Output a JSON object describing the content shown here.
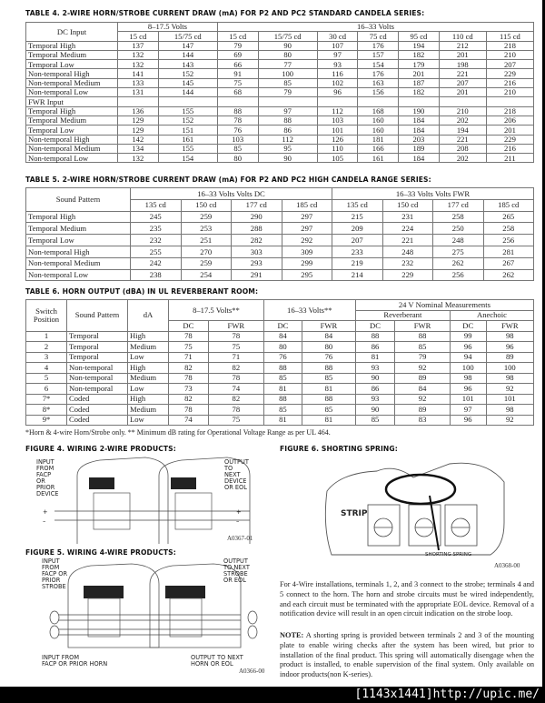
{
  "table4": {
    "title": "TABLE 4. 2-WIRE HORN/STROBE CURRENT DRAW (mA) FOR P2 AND PC2 STANDARD CANDELA SERIES:",
    "corner": "DC Input",
    "groups": [
      "8–17.5 Volts",
      "16–33 Volts"
    ],
    "columns": [
      "15 cd",
      "15/75 cd",
      "15 cd",
      "15/75 cd",
      "30 cd",
      "75 cd",
      "95 cd",
      "110 cd",
      "115 cd"
    ],
    "rows": [
      [
        "Temporal High",
        "137",
        "147",
        "79",
        "90",
        "107",
        "176",
        "194",
        "212",
        "218"
      ],
      [
        "Temporal Medium",
        "132",
        "144",
        "69",
        "80",
        "97",
        "157",
        "182",
        "201",
        "210"
      ],
      [
        "Temporal Low",
        "132",
        "143",
        "66",
        "77",
        "93",
        "154",
        "179",
        "198",
        "207"
      ],
      [
        "Non-temporal High",
        "141",
        "152",
        "91",
        "100",
        "116",
        "176",
        "201",
        "221",
        "229"
      ],
      [
        "Non-temporal Medium",
        "133",
        "145",
        "75",
        "85",
        "102",
        "163",
        "187",
        "207",
        "216"
      ],
      [
        "Non-temporal Low",
        "131",
        "144",
        "68",
        "79",
        "96",
        "156",
        "182",
        "201",
        "210"
      ],
      [
        "FWR Input",
        "",
        "",
        "",
        "",
        "",
        "",
        "",
        "",
        ""
      ],
      [
        "Temporal High",
        "136",
        "155",
        "88",
        "97",
        "112",
        "168",
        "190",
        "210",
        "218"
      ],
      [
        "Temporal Medium",
        "129",
        "152",
        "78",
        "88",
        "103",
        "160",
        "184",
        "202",
        "206"
      ],
      [
        "Temporal Low",
        "129",
        "151",
        "76",
        "86",
        "101",
        "160",
        "184",
        "194",
        "201"
      ],
      [
        "Non-temporal High",
        "142",
        "161",
        "103",
        "112",
        "126",
        "181",
        "203",
        "221",
        "229"
      ],
      [
        "Non-temporal Medium",
        "134",
        "155",
        "85",
        "95",
        "110",
        "166",
        "189",
        "208",
        "216"
      ],
      [
        "Non-temporal Low",
        "132",
        "154",
        "80",
        "90",
        "105",
        "161",
        "184",
        "202",
        "211"
      ]
    ]
  },
  "table5": {
    "title": "TABLE 5. 2-WIRE HORN/STROBE CURRENT DRAW (mA) FOR P2 AND PC2 HIGH CANDELA RANGE SERIES:",
    "corner": "Sound Pattern",
    "groups": [
      "16–33 Volts Volts DC",
      "16–33 Volts Volts FWR"
    ],
    "columns": [
      "135 cd",
      "150 cd",
      "177 cd",
      "185 cd",
      "135 cd",
      "150 cd",
      "177 cd",
      "185 cd"
    ],
    "rows": [
      [
        "Temporal High",
        "245",
        "259",
        "290",
        "297",
        "215",
        "231",
        "258",
        "265"
      ],
      [
        "Temporal Medium",
        "235",
        "253",
        "288",
        "297",
        "209",
        "224",
        "250",
        "258"
      ],
      [
        "Temporal Low",
        "232",
        "251",
        "282",
        "292",
        "207",
        "221",
        "248",
        "256"
      ],
      [
        "Non-temporal High",
        "255",
        "270",
        "303",
        "309",
        "233",
        "248",
        "275",
        "281"
      ],
      [
        "Non-temporal Medium",
        "242",
        "259",
        "293",
        "299",
        "219",
        "232",
        "262",
        "267"
      ],
      [
        "Non-temporal Low",
        "238",
        "254",
        "291",
        "295",
        "214",
        "229",
        "256",
        "262"
      ]
    ]
  },
  "table6": {
    "title": "TABLE 6. HORN OUTPUT (dBA) IN UL REVERBERANT ROOM:",
    "h_switch": "Switch Position",
    "h_pattern": "Sound Pattern",
    "h_da": "dA",
    "h_v1": "8–17.5 Volts**",
    "h_v2": "16–33 Volts**",
    "h_nominal": "24 V Nominal Measurements",
    "h_reverb": "Reverberant",
    "h_anech": "Anechoic",
    "h_dc": "DC",
    "h_fwr": "FWR",
    "rows": [
      [
        "1",
        "Temporal",
        "High",
        "78",
        "78",
        "84",
        "84",
        "88",
        "88",
        "99",
        "98"
      ],
      [
        "2",
        "Temporal",
        "Medium",
        "75",
        "75",
        "80",
        "80",
        "86",
        "85",
        "96",
        "96"
      ],
      [
        "3",
        "Temporal",
        "Low",
        "71",
        "71",
        "76",
        "76",
        "81",
        "79",
        "94",
        "89"
      ],
      [
        "4",
        "Non-temporal",
        "High",
        "82",
        "82",
        "88",
        "88",
        "93",
        "92",
        "100",
        "100"
      ],
      [
        "5",
        "Non-temporal",
        "Medium",
        "78",
        "78",
        "85",
        "85",
        "90",
        "89",
        "98",
        "98"
      ],
      [
        "6",
        "Non-temporal",
        "Low",
        "73",
        "74",
        "81",
        "81",
        "86",
        "84",
        "96",
        "92"
      ],
      [
        "7*",
        "Coded",
        "High",
        "82",
        "82",
        "88",
        "88",
        "93",
        "92",
        "101",
        "101"
      ],
      [
        "8*",
        "Coded",
        "Medium",
        "78",
        "78",
        "85",
        "85",
        "90",
        "89",
        "97",
        "98"
      ],
      [
        "9*",
        "Coded",
        "Low",
        "74",
        "75",
        "81",
        "81",
        "85",
        "83",
        "96",
        "92"
      ]
    ],
    "footnote": "*Horn & 4-wire Horn/Strobe only.  ** Minimum dB rating for Operational Voltage Range as per UL 464."
  },
  "figure4": {
    "title": "FIGURE 4. WIRING 2-WIRE PRODUCTS:",
    "input": "INPUT\nFROM\nFACP\nOR\nPRIOR\nDEVICE",
    "output": "OUTPUT\nTO\nNEXT\nDEVICE\nOR EOL",
    "plus": "+",
    "minus": "–",
    "code": "A0367-01"
  },
  "figure5": {
    "title": "FIGURE 5. WIRING 4-WIRE PRODUCTS:",
    "input_top": "INPUT\nFROM\nFACP OR\nPRIOR\nSTROBE",
    "output_top": "OUTPUT\nTO NEXT\nSTROBE\nOR EOL",
    "input_bottom": "INPUT FROM\nFACP OR PRIOR HORN",
    "output_bottom": "OUTPUT TO NEXT\nHORN OR EOL",
    "code": "A0366-00"
  },
  "figure6": {
    "title": "FIGURE 6. SHORTING SPRING:",
    "strip": "STRIP",
    "spring": "SHORTING SPRING",
    "code": "A0368-00"
  },
  "text": {
    "para1": "For 4-Wire installations, terminals 1, 2, and 3 connect to the strobe; terminals 4 and 5 connect to the horn. The horn and strobe circuits must be wired independently, and each circuit must be terminated with the appropriate EOL device. Removal of a notification device will result in an open circuit indication on the strobe loop.",
    "note_label": "NOTE:",
    "note": " A shorting spring is provided between terminals 2 and 3 of the mounting plate to enable wiring checks after the system has been wired, but prior to installation of the final product. This spring will automatically disengage when the product is installed, to enable supervision of the final system. Only available on indoor products(non K-series)."
  },
  "watermark": "[1143x1441]http://upic.me/"
}
